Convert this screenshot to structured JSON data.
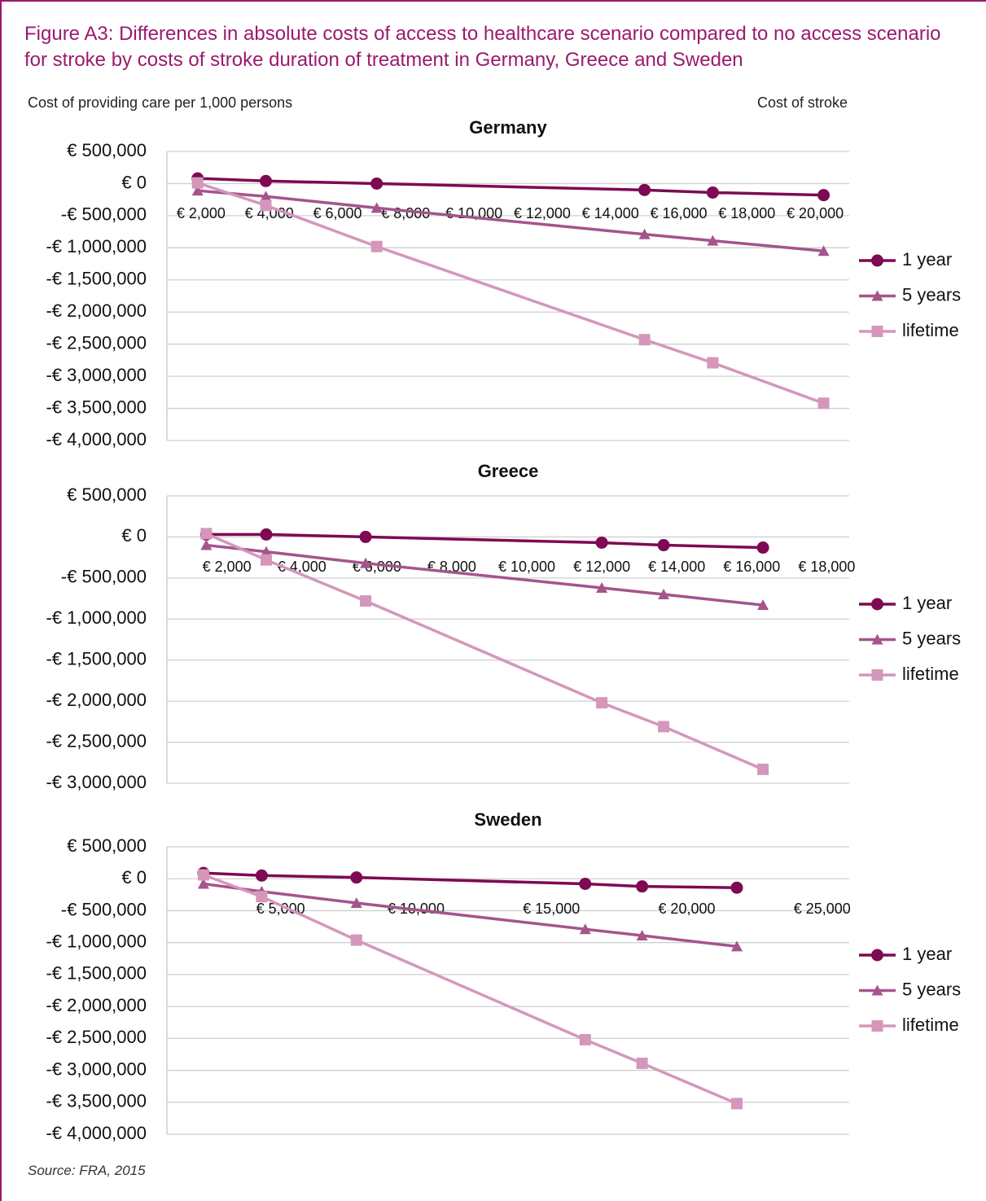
{
  "title": "Figure A3:  Differences in absolute costs of access to healthcare scenario compared to no access scenario for stroke by costs of stroke duration of treatment in Germany, Greece and Sweden",
  "y_label": "Cost of providing care per 1,000 persons",
  "x_label": "Cost of stroke",
  "source": "Source: FRA, 2015",
  "chart_data": [
    {
      "type": "line",
      "title": "Germany",
      "grid": true,
      "legend": "right",
      "x": [
        1900,
        3900,
        7150,
        15000,
        17000,
        20250
      ],
      "xlim": [
        1000,
        21000
      ],
      "xticks": [
        {
          "value": 2000,
          "label": "€ 2,000"
        },
        {
          "value": 4000,
          "label": "€ 4,000"
        },
        {
          "value": 6000,
          "label": "€ 6,000"
        },
        {
          "value": 8000,
          "label": "€ 8,000"
        },
        {
          "value": 10000,
          "label": "€ 10,000"
        },
        {
          "value": 12000,
          "label": "€ 12,000"
        },
        {
          "value": 14000,
          "label": "€ 14,000"
        },
        {
          "value": 16000,
          "label": "€ 16,000"
        },
        {
          "value": 18000,
          "label": "€ 18,000"
        },
        {
          "value": 20000,
          "label": "€ 20,000"
        }
      ],
      "ylim": [
        -4000000,
        500000
      ],
      "yticks": [
        {
          "value": 500000,
          "label": "€ 500,000"
        },
        {
          "value": 0,
          "label": "€ 0"
        },
        {
          "value": -500000,
          "label": "-€ 500,000"
        },
        {
          "value": -1000000,
          "label": "-€ 1,000,000"
        },
        {
          "value": -1500000,
          "label": "-€ 1,500,000"
        },
        {
          "value": -2000000,
          "label": "-€ 2,000,000"
        },
        {
          "value": -2500000,
          "label": "-€ 2,500,000"
        },
        {
          "value": -3000000,
          "label": "-€ 3,000,000"
        },
        {
          "value": -3500000,
          "label": "-€ 3,500,000"
        },
        {
          "value": -4000000,
          "label": "-€ 4,000,000"
        }
      ],
      "series": [
        {
          "name": "1 year",
          "color": "#7d0a52",
          "marker": "circle",
          "values": [
            80000,
            40000,
            0,
            -100000,
            -140000,
            -180000
          ]
        },
        {
          "name": "5 years",
          "color": "#a5548c",
          "marker": "triangle",
          "values": [
            -110000,
            -200000,
            -380000,
            -790000,
            -890000,
            -1050000
          ]
        },
        {
          "name": "lifetime",
          "color": "#d497bb",
          "marker": "square",
          "values": [
            10000,
            -340000,
            -980000,
            -2430000,
            -2790000,
            -3420000
          ]
        }
      ]
    },
    {
      "type": "line",
      "title": "Greece",
      "grid": true,
      "legend": "right",
      "x": [
        1450,
        3050,
        5700,
        12000,
        13650,
        16300
      ],
      "xlim": [
        400,
        18600
      ],
      "xticks": [
        {
          "value": 2000,
          "label": "€ 2,000"
        },
        {
          "value": 4000,
          "label": "€ 4,000"
        },
        {
          "value": 6000,
          "label": "€ 6,000"
        },
        {
          "value": 8000,
          "label": "€ 8,000"
        },
        {
          "value": 10000,
          "label": "€ 10,000"
        },
        {
          "value": 12000,
          "label": "€ 12,000"
        },
        {
          "value": 14000,
          "label": "€ 14,000"
        },
        {
          "value": 16000,
          "label": "€ 16,000"
        },
        {
          "value": 18000,
          "label": "€ 18,000"
        }
      ],
      "ylim": [
        -3000000,
        500000
      ],
      "yticks": [
        {
          "value": 500000,
          "label": "€ 500,000"
        },
        {
          "value": 0,
          "label": "€ 0"
        },
        {
          "value": -500000,
          "label": "-€ 500,000"
        },
        {
          "value": -1000000,
          "label": "-€ 1,000,000"
        },
        {
          "value": -1500000,
          "label": "-€ 1,500,000"
        },
        {
          "value": -2000000,
          "label": "-€ 2,000,000"
        },
        {
          "value": -2500000,
          "label": "-€ 2,500,000"
        },
        {
          "value": -3000000,
          "label": "-€ 3,000,000"
        }
      ],
      "series": [
        {
          "name": "1 year",
          "color": "#7d0a52",
          "marker": "circle",
          "values": [
            30000,
            30000,
            0,
            -70000,
            -100000,
            -130000
          ]
        },
        {
          "name": "5 years",
          "color": "#a5548c",
          "marker": "triangle",
          "values": [
            -100000,
            -180000,
            -320000,
            -620000,
            -700000,
            -830000
          ]
        },
        {
          "name": "lifetime",
          "color": "#d497bb",
          "marker": "square",
          "values": [
            40000,
            -280000,
            -780000,
            -2020000,
            -2310000,
            -2830000
          ]
        }
      ]
    },
    {
      "type": "line",
      "title": "Sweden",
      "grid": true,
      "legend": "right",
      "x": [
        2150,
        4300,
        7800,
        16250,
        18350,
        21850
      ],
      "xlim": [
        800,
        26000
      ],
      "xticks": [
        {
          "value": 5000,
          "label": "€ 5,000"
        },
        {
          "value": 10000,
          "label": "€ 10,000"
        },
        {
          "value": 15000,
          "label": "€ 15,000"
        },
        {
          "value": 20000,
          "label": "€ 20,000"
        },
        {
          "value": 25000,
          "label": "€ 25,000"
        }
      ],
      "ylim": [
        -4000000,
        500000
      ],
      "yticks": [
        {
          "value": 500000,
          "label": "€ 500,000"
        },
        {
          "value": 0,
          "label": "€ 0"
        },
        {
          "value": -500000,
          "label": "-€ 500,000"
        },
        {
          "value": -1000000,
          "label": "-€ 1,000,000"
        },
        {
          "value": -1500000,
          "label": "-€ 1,500,000"
        },
        {
          "value": -2000000,
          "label": "-€ 2,000,000"
        },
        {
          "value": -2500000,
          "label": "-€ 2,500,000"
        },
        {
          "value": -3000000,
          "label": "-€ 3,000,000"
        },
        {
          "value": -3500000,
          "label": "-€ 3,500,000"
        },
        {
          "value": -4000000,
          "label": "-€ 4,000,000"
        }
      ],
      "series": [
        {
          "name": "1 year",
          "color": "#7d0a52",
          "marker": "circle",
          "values": [
            90000,
            50000,
            20000,
            -80000,
            -120000,
            -140000
          ]
        },
        {
          "name": "5 years",
          "color": "#a5548c",
          "marker": "triangle",
          "values": [
            -80000,
            -200000,
            -380000,
            -790000,
            -890000,
            -1060000
          ]
        },
        {
          "name": "lifetime",
          "color": "#d497bb",
          "marker": "square",
          "values": [
            60000,
            -280000,
            -960000,
            -2520000,
            -2890000,
            -3520000
          ]
        }
      ]
    }
  ]
}
